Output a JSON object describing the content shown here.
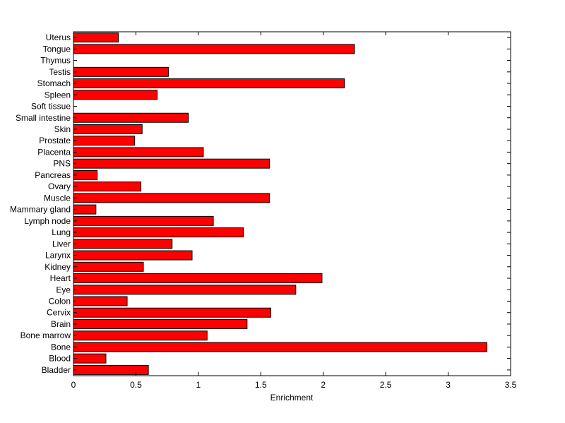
{
  "chart_data": {
    "type": "bar",
    "orientation": "horizontal",
    "categories": [
      "Bladder",
      "Blood",
      "Bone",
      "Bone marrow",
      "Brain",
      "Cervix",
      "Colon",
      "Eye",
      "Heart",
      "Kidney",
      "Larynx",
      "Liver",
      "Lung",
      "Lymph node",
      "Mammary gland",
      "Muscle",
      "Ovary",
      "Pancreas",
      "PNS",
      "Placenta",
      "Prostate",
      "Skin",
      "Small intestine",
      "Soft tissue",
      "Spleen",
      "Stomach",
      "Testis",
      "Thymus",
      "Tongue",
      "Uterus"
    ],
    "values": [
      0.6,
      0.26,
      3.31,
      1.07,
      1.39,
      1.58,
      0.43,
      1.78,
      1.99,
      0.56,
      0.95,
      0.79,
      1.36,
      1.12,
      0.18,
      1.57,
      0.54,
      0.19,
      1.57,
      1.04,
      0.49,
      0.55,
      0.92,
      0.0,
      0.67,
      2.17,
      0.76,
      0.0,
      2.25,
      0.36
    ],
    "title": "",
    "xlabel": "Enrichment",
    "ylabel": "",
    "xlim": [
      0,
      3.5
    ],
    "xticks": [
      "0",
      "0.5",
      "1",
      "1.5",
      "2",
      "2.5",
      "3",
      "3.5"
    ],
    "grid": false,
    "bar_color": "#ff0000",
    "bar_edge_color": "#000000"
  }
}
